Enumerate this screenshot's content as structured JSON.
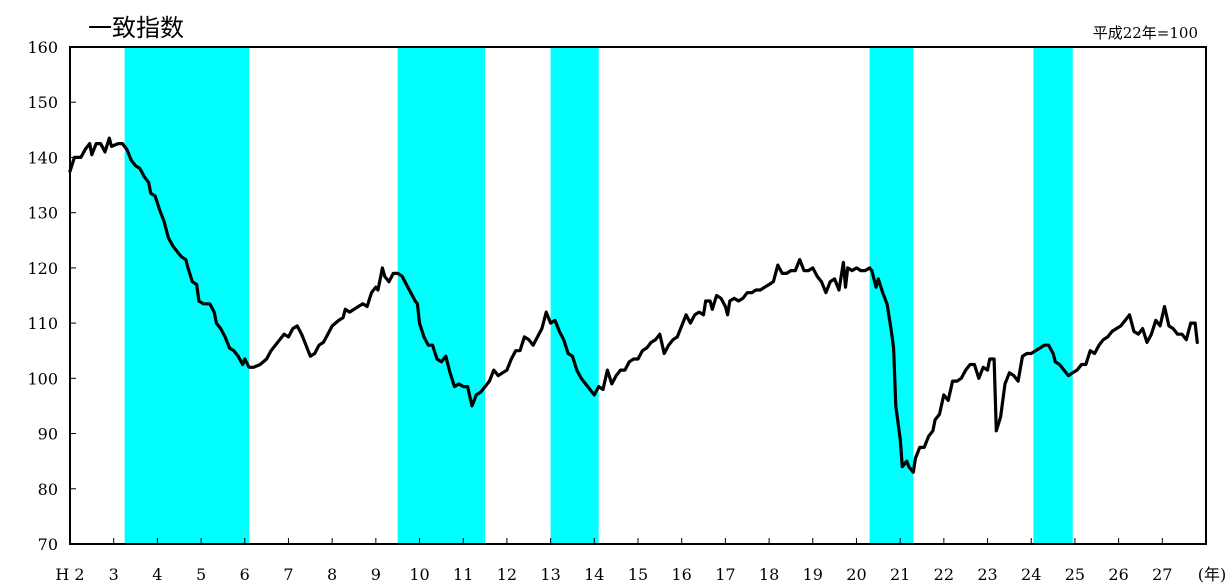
{
  "chart_data": {
    "type": "line",
    "title": "一致指数",
    "note": "平成22年=100",
    "x_unit": "(年)",
    "ylim": [
      70,
      160
    ],
    "y_ticks": [
      70,
      80,
      90,
      100,
      110,
      120,
      130,
      140,
      150,
      160
    ],
    "xlim": [
      2,
      28
    ],
    "x_ticks": [
      {
        "x": 2,
        "label": "H 2"
      },
      {
        "x": 3,
        "label": "3"
      },
      {
        "x": 4,
        "label": "4"
      },
      {
        "x": 5,
        "label": "5"
      },
      {
        "x": 6,
        "label": "6"
      },
      {
        "x": 7,
        "label": "7"
      },
      {
        "x": 8,
        "label": "8"
      },
      {
        "x": 9,
        "label": "9"
      },
      {
        "x": 10,
        "label": "10"
      },
      {
        "x": 11,
        "label": "11"
      },
      {
        "x": 12,
        "label": "12"
      },
      {
        "x": 13,
        "label": "13"
      },
      {
        "x": 14,
        "label": "14"
      },
      {
        "x": 15,
        "label": "15"
      },
      {
        "x": 16,
        "label": "16"
      },
      {
        "x": 17,
        "label": "17"
      },
      {
        "x": 18,
        "label": "18"
      },
      {
        "x": 19,
        "label": "19"
      },
      {
        "x": 20,
        "label": "20"
      },
      {
        "x": 21,
        "label": "21"
      },
      {
        "x": 22,
        "label": "22"
      },
      {
        "x": 23,
        "label": "23"
      },
      {
        "x": 24,
        "label": "24"
      },
      {
        "x": 25,
        "label": "25"
      },
      {
        "x": 26,
        "label": "26"
      },
      {
        "x": 27,
        "label": "27"
      }
    ],
    "recession_bands": [
      [
        3.25,
        6.1
      ],
      [
        9.5,
        11.5
      ],
      [
        13.0,
        14.1
      ],
      [
        20.3,
        21.3
      ],
      [
        24.05,
        24.95
      ]
    ],
    "band_color": "#00FFFF",
    "line_color": "#000000",
    "series": [
      {
        "points": [
          [
            2.0,
            137.5
          ],
          [
            2.1,
            140.0
          ],
          [
            2.25,
            140.0
          ],
          [
            2.35,
            141.5
          ],
          [
            2.45,
            142.5
          ],
          [
            2.5,
            140.5
          ],
          [
            2.6,
            142.5
          ],
          [
            2.7,
            142.5
          ],
          [
            2.8,
            141.0
          ],
          [
            2.9,
            143.5
          ],
          [
            2.95,
            142.0
          ],
          [
            3.1,
            142.5
          ],
          [
            3.2,
            142.5
          ],
          [
            3.3,
            141.5
          ],
          [
            3.4,
            139.5
          ],
          [
            3.5,
            138.5
          ],
          [
            3.6,
            138.0
          ],
          [
            3.7,
            136.5
          ],
          [
            3.8,
            135.5
          ],
          [
            3.85,
            133.5
          ],
          [
            3.95,
            133.0
          ],
          [
            4.05,
            130.5
          ],
          [
            4.15,
            128.5
          ],
          [
            4.25,
            125.5
          ],
          [
            4.35,
            124.0
          ],
          [
            4.45,
            123.0
          ],
          [
            4.55,
            122.0
          ],
          [
            4.65,
            121.5
          ],
          [
            4.7,
            120.0
          ],
          [
            4.8,
            117.5
          ],
          [
            4.9,
            117.0
          ],
          [
            4.95,
            114.0
          ],
          [
            5.05,
            113.5
          ],
          [
            5.2,
            113.5
          ],
          [
            5.3,
            112.0
          ],
          [
            5.35,
            110.0
          ],
          [
            5.45,
            109.0
          ],
          [
            5.55,
            107.5
          ],
          [
            5.65,
            105.5
          ],
          [
            5.75,
            105.0
          ],
          [
            5.85,
            104.0
          ],
          [
            5.95,
            102.5
          ],
          [
            6.0,
            103.5
          ],
          [
            6.1,
            102.0
          ],
          [
            6.2,
            102.0
          ],
          [
            6.35,
            102.5
          ],
          [
            6.5,
            103.5
          ],
          [
            6.6,
            105.0
          ],
          [
            6.7,
            106.0
          ],
          [
            6.8,
            107.0
          ],
          [
            6.9,
            108.0
          ],
          [
            7.0,
            107.5
          ],
          [
            7.1,
            109.0
          ],
          [
            7.2,
            109.5
          ],
          [
            7.3,
            108.0
          ],
          [
            7.35,
            107.0
          ],
          [
            7.5,
            104.0
          ],
          [
            7.6,
            104.5
          ],
          [
            7.7,
            106.0
          ],
          [
            7.8,
            106.5
          ],
          [
            7.9,
            108.0
          ],
          [
            8.0,
            109.5
          ],
          [
            8.15,
            110.5
          ],
          [
            8.25,
            111.0
          ],
          [
            8.3,
            112.5
          ],
          [
            8.4,
            112.0
          ],
          [
            8.5,
            112.5
          ],
          [
            8.6,
            113.0
          ],
          [
            8.7,
            113.5
          ],
          [
            8.8,
            113.0
          ],
          [
            8.9,
            115.5
          ],
          [
            9.0,
            116.5
          ],
          [
            9.05,
            116.0
          ],
          [
            9.15,
            120.0
          ],
          [
            9.2,
            118.5
          ],
          [
            9.3,
            117.5
          ],
          [
            9.4,
            119.0
          ],
          [
            9.5,
            119.0
          ],
          [
            9.6,
            118.5
          ],
          [
            9.7,
            117.0
          ],
          [
            9.8,
            115.5
          ],
          [
            9.9,
            114.0
          ],
          [
            9.95,
            113.5
          ],
          [
            10.0,
            110.0
          ],
          [
            10.1,
            107.5
          ],
          [
            10.2,
            106.0
          ],
          [
            10.3,
            106.0
          ],
          [
            10.4,
            103.5
          ],
          [
            10.5,
            103.0
          ],
          [
            10.6,
            104.0
          ],
          [
            10.7,
            101.0
          ],
          [
            10.8,
            98.5
          ],
          [
            10.9,
            99.0
          ],
          [
            11.0,
            98.5
          ],
          [
            11.1,
            98.5
          ],
          [
            11.2,
            95.0
          ],
          [
            11.3,
            97.0
          ],
          [
            11.4,
            97.5
          ],
          [
            11.5,
            98.5
          ],
          [
            11.6,
            99.5
          ],
          [
            11.7,
            101.5
          ],
          [
            11.8,
            100.5
          ],
          [
            11.9,
            101.0
          ],
          [
            12.0,
            101.5
          ],
          [
            12.1,
            103.5
          ],
          [
            12.2,
            105.0
          ],
          [
            12.3,
            105.0
          ],
          [
            12.4,
            107.5
          ],
          [
            12.5,
            107.0
          ],
          [
            12.6,
            106.0
          ],
          [
            12.7,
            107.5
          ],
          [
            12.8,
            109.0
          ],
          [
            12.9,
            112.0
          ],
          [
            13.0,
            110.0
          ],
          [
            13.1,
            110.5
          ],
          [
            13.2,
            108.5
          ],
          [
            13.3,
            107.0
          ],
          [
            13.4,
            104.5
          ],
          [
            13.5,
            104.0
          ],
          [
            13.6,
            101.5
          ],
          [
            13.7,
            100.0
          ],
          [
            13.8,
            99.0
          ],
          [
            13.9,
            98.0
          ],
          [
            14.0,
            97.0
          ],
          [
            14.1,
            98.5
          ],
          [
            14.2,
            98.0
          ],
          [
            14.3,
            101.5
          ],
          [
            14.4,
            99.0
          ],
          [
            14.5,
            100.5
          ],
          [
            14.6,
            101.5
          ],
          [
            14.7,
            101.5
          ],
          [
            14.8,
            103.0
          ],
          [
            14.9,
            103.5
          ],
          [
            15.0,
            103.5
          ],
          [
            15.1,
            105.0
          ],
          [
            15.2,
            105.5
          ],
          [
            15.3,
            106.5
          ],
          [
            15.4,
            107.0
          ],
          [
            15.5,
            108.0
          ],
          [
            15.6,
            104.5
          ],
          [
            15.7,
            106.0
          ],
          [
            15.8,
            107.0
          ],
          [
            15.9,
            107.5
          ],
          [
            16.0,
            109.5
          ],
          [
            16.1,
            111.5
          ],
          [
            16.2,
            110.0
          ],
          [
            16.3,
            111.5
          ],
          [
            16.4,
            112.0
          ],
          [
            16.5,
            111.5
          ],
          [
            16.55,
            114.0
          ],
          [
            16.65,
            114.0
          ],
          [
            16.7,
            112.5
          ],
          [
            16.8,
            115.0
          ],
          [
            16.9,
            114.5
          ],
          [
            17.0,
            113.0
          ],
          [
            17.05,
            111.5
          ],
          [
            17.1,
            114.0
          ],
          [
            17.2,
            114.5
          ],
          [
            17.3,
            114.0
          ],
          [
            17.4,
            114.5
          ],
          [
            17.5,
            115.5
          ],
          [
            17.6,
            115.5
          ],
          [
            17.7,
            116.0
          ],
          [
            17.8,
            116.0
          ],
          [
            17.9,
            116.5
          ],
          [
            18.0,
            117.0
          ],
          [
            18.1,
            117.5
          ],
          [
            18.2,
            120.5
          ],
          [
            18.3,
            119.0
          ],
          [
            18.4,
            119.0
          ],
          [
            18.5,
            119.5
          ],
          [
            18.6,
            119.5
          ],
          [
            18.7,
            121.5
          ],
          [
            18.8,
            119.5
          ],
          [
            18.9,
            119.5
          ],
          [
            19.0,
            120.0
          ],
          [
            19.1,
            118.5
          ],
          [
            19.2,
            117.5
          ],
          [
            19.3,
            115.5
          ],
          [
            19.4,
            117.5
          ],
          [
            19.5,
            118.0
          ],
          [
            19.6,
            116.0
          ],
          [
            19.7,
            121.0
          ],
          [
            19.75,
            116.5
          ],
          [
            19.8,
            120.0
          ],
          [
            19.9,
            119.5
          ],
          [
            20.0,
            120.0
          ],
          [
            20.1,
            119.5
          ],
          [
            20.2,
            119.5
          ],
          [
            20.3,
            120.0
          ],
          [
            20.35,
            119.5
          ],
          [
            20.45,
            116.5
          ],
          [
            20.5,
            118.0
          ],
          [
            20.6,
            115.5
          ],
          [
            20.7,
            113.5
          ],
          [
            20.8,
            108.5
          ],
          [
            20.85,
            105.5
          ],
          [
            20.9,
            95.0
          ],
          [
            21.0,
            89.0
          ],
          [
            21.05,
            84.0
          ],
          [
            21.15,
            85.0
          ],
          [
            21.2,
            84.0
          ],
          [
            21.3,
            83.0
          ],
          [
            21.35,
            85.5
          ],
          [
            21.45,
            87.5
          ],
          [
            21.55,
            87.5
          ],
          [
            21.65,
            89.5
          ],
          [
            21.75,
            90.5
          ],
          [
            21.8,
            92.5
          ],
          [
            21.9,
            93.5
          ],
          [
            22.0,
            97.0
          ],
          [
            22.1,
            96.0
          ],
          [
            22.2,
            99.5
          ],
          [
            22.3,
            99.5
          ],
          [
            22.4,
            100.0
          ],
          [
            22.5,
            101.5
          ],
          [
            22.6,
            102.5
          ],
          [
            22.7,
            102.5
          ],
          [
            22.8,
            100.0
          ],
          [
            22.9,
            102.0
          ],
          [
            23.0,
            101.5
          ],
          [
            23.05,
            103.5
          ],
          [
            23.15,
            103.5
          ],
          [
            23.2,
            90.5
          ],
          [
            23.3,
            93.0
          ],
          [
            23.4,
            99.0
          ],
          [
            23.5,
            101.0
          ],
          [
            23.6,
            100.5
          ],
          [
            23.7,
            99.5
          ],
          [
            23.8,
            104.0
          ],
          [
            23.9,
            104.5
          ],
          [
            24.0,
            104.5
          ],
          [
            24.1,
            105.0
          ],
          [
            24.2,
            105.5
          ],
          [
            24.3,
            106.0
          ],
          [
            24.4,
            106.0
          ],
          [
            24.5,
            104.5
          ],
          [
            24.55,
            103.0
          ],
          [
            24.65,
            102.5
          ],
          [
            24.75,
            101.5
          ],
          [
            24.85,
            100.5
          ],
          [
            24.95,
            101.0
          ],
          [
            25.05,
            101.5
          ],
          [
            25.15,
            102.5
          ],
          [
            25.25,
            102.5
          ],
          [
            25.35,
            105.0
          ],
          [
            25.45,
            104.5
          ],
          [
            25.55,
            106.0
          ],
          [
            25.65,
            107.0
          ],
          [
            25.75,
            107.5
          ],
          [
            25.85,
            108.5
          ],
          [
            25.95,
            109.0
          ],
          [
            26.05,
            109.5
          ],
          [
            26.15,
            110.5
          ],
          [
            26.25,
            111.5
          ],
          [
            26.35,
            108.5
          ],
          [
            26.45,
            108.0
          ],
          [
            26.55,
            109.0
          ],
          [
            26.65,
            106.5
          ],
          [
            26.75,
            108.0
          ],
          [
            26.85,
            110.5
          ],
          [
            26.95,
            109.5
          ],
          [
            27.05,
            113.0
          ],
          [
            27.15,
            109.5
          ],
          [
            27.25,
            109.0
          ],
          [
            27.35,
            108.0
          ],
          [
            27.45,
            108.0
          ],
          [
            27.55,
            107.0
          ],
          [
            27.65,
            110.0
          ],
          [
            27.75,
            110.0
          ],
          [
            27.8,
            106.5
          ]
        ]
      }
    ]
  }
}
